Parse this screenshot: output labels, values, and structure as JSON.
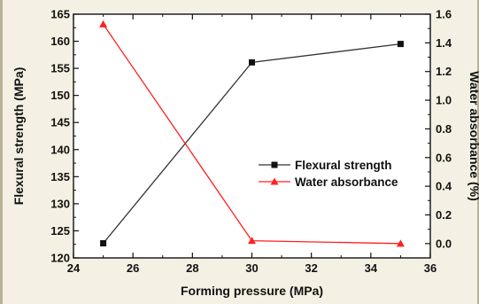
{
  "chart_data": {
    "type": "line",
    "x": [
      25,
      30,
      35
    ],
    "xlabel": "Forming pressure (MPa)",
    "xlim": [
      24,
      36
    ],
    "xticks": [
      "24",
      "26",
      "28",
      "30",
      "32",
      "34",
      "36"
    ],
    "ylabel_left": "Flexural strength (MPa)",
    "ylim_left": [
      120,
      165
    ],
    "yticks_left": [
      "120",
      "125",
      "130",
      "135",
      "140",
      "145",
      "150",
      "155",
      "160",
      "165"
    ],
    "ylabel_right": "Water absorbance (%)",
    "ylim_right": [
      -0.1,
      1.6
    ],
    "yticks_right": [
      "0.0",
      "0.2",
      "0.4",
      "0.6",
      "0.8",
      "1.0",
      "1.2",
      "1.4",
      "1.6"
    ],
    "series": [
      {
        "name": "Flexural strength",
        "axis": "left",
        "values": [
          122.7,
          156.1,
          159.5
        ],
        "color": "#333333",
        "marker": "square"
      },
      {
        "name": "Water absorbance",
        "axis": "right",
        "values": [
          1.53,
          0.02,
          0.0
        ],
        "color": "#ff2020",
        "marker": "triangle"
      }
    ],
    "legend_position": "center-right",
    "grid": false
  }
}
